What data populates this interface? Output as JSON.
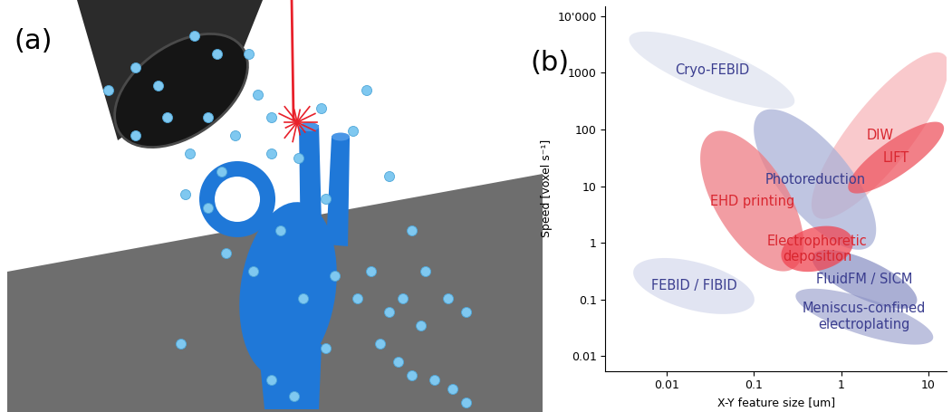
{
  "illustration": {
    "label": "(a)"
  },
  "chart_data": {
    "type": "ellipse",
    "annotations": [
      "(b)"
    ],
    "xlabel": "X-Y feature size [um]",
    "ylabel": "Speed [voxel s⁻¹]",
    "log": true,
    "xlim": [
      0.002,
      16
    ],
    "ylim": [
      0.0055,
      15000
    ],
    "xticks": [
      0.01,
      0.1,
      1,
      10
    ],
    "yticks": [
      0.01,
      0.1,
      1,
      10,
      100,
      1000,
      {
        "value": 10000,
        "label": "10'000"
      }
    ],
    "series": [
      {
        "name": "Cryo-FEBID",
        "color": "#dfe3f0",
        "x": [
          0.0039,
          0.28
        ],
        "y": [
          4600,
          270
        ],
        "width": 0.35
      },
      {
        "name": "DIW",
        "color": "#f8b8bb",
        "x": [
          0.56,
          13.9
        ],
        "y": [
          2.7,
          2250
        ],
        "width": 0.4
      },
      {
        "name": "FEBID / FIBID",
        "color": "#d8dcee",
        "x": [
          0.0044,
          0.096
        ],
        "y": [
          0.38,
          0.078
        ],
        "width": 0.4
      },
      {
        "name": "Photoreduction",
        "color": "#aab2d8",
        "x": [
          0.135,
          1.86
        ],
        "y": [
          220,
          0.78
        ],
        "width": 0.45
      },
      {
        "name": "EHD printing",
        "color": "#ee7d84",
        "x": [
          0.037,
          0.245
        ],
        "y": [
          93,
          0.32
        ],
        "width": 0.45
      },
      {
        "name": "LIFT",
        "color": "#ee5560",
        "x": [
          1.3,
          13.9
        ],
        "y": [
          7.8,
          130
        ],
        "width": 0.25
      },
      {
        "name": "Meniscus-confined\nelectroplating",
        "color": "#a7acd3",
        "x": [
          0.31,
          11
        ],
        "y": [
          0.13,
          0.019
        ],
        "width": 0.3
      },
      {
        "name": "FluidFM / SICM",
        "color": "#8e94c6",
        "x": [
          0.5,
          6.9
        ],
        "y": [
          0.66,
          0.078
        ],
        "width": 0.3
      },
      {
        "name": "Electrophoretic\ndeposition",
        "color": "#f04552",
        "x": [
          0.245,
          1.15
        ],
        "y": [
          0.38,
          1.6
        ],
        "width": 0.35
      }
    ]
  }
}
